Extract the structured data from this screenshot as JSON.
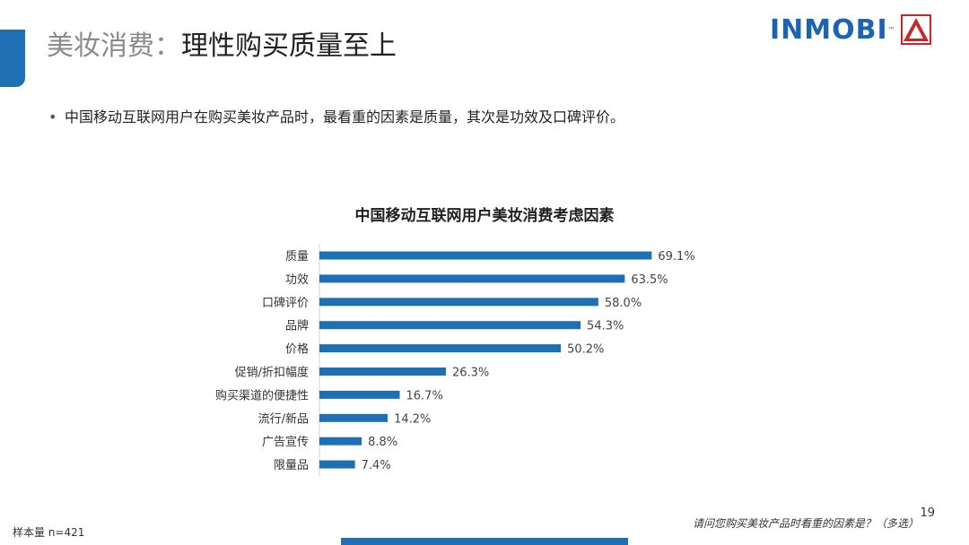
{
  "slide": {
    "title_prefix": "美妆消费：",
    "title_main": "理性购买质量至上",
    "bullet": "中国移动互联网用户在购买美妆产品时，最看重的因素是质量，其次是功效及口碑评价。",
    "page_number": "19",
    "question_note": "请问您购买美妆产品时看重的因素是？（多选）",
    "sample_note": "样本量 n=421"
  },
  "logo": {
    "text": "INMOBI",
    "tm": "™",
    "brand_color": "#1d63b3"
  },
  "colors": {
    "bar": "#1f6fb5",
    "accent": "#1f6fb5"
  },
  "chart_data": {
    "type": "bar",
    "orientation": "horizontal",
    "title": "中国移动互联网用户美妆消费考虑因素",
    "categories": [
      "质量",
      "功效",
      "口碑评价",
      "品牌",
      "价格",
      "促销/折扣幅度",
      "购买渠道的便捷性",
      "流行/新品",
      "广告宣传",
      "限量品"
    ],
    "values": [
      69.1,
      63.5,
      58.0,
      54.3,
      50.2,
      26.3,
      16.7,
      14.2,
      8.8,
      7.4
    ],
    "value_labels": [
      "69.1%",
      "63.5%",
      "58.0%",
      "54.3%",
      "50.2%",
      "26.3%",
      "16.7%",
      "14.2%",
      "8.8%",
      "7.4%"
    ],
    "unit": "%",
    "grid": false
  }
}
